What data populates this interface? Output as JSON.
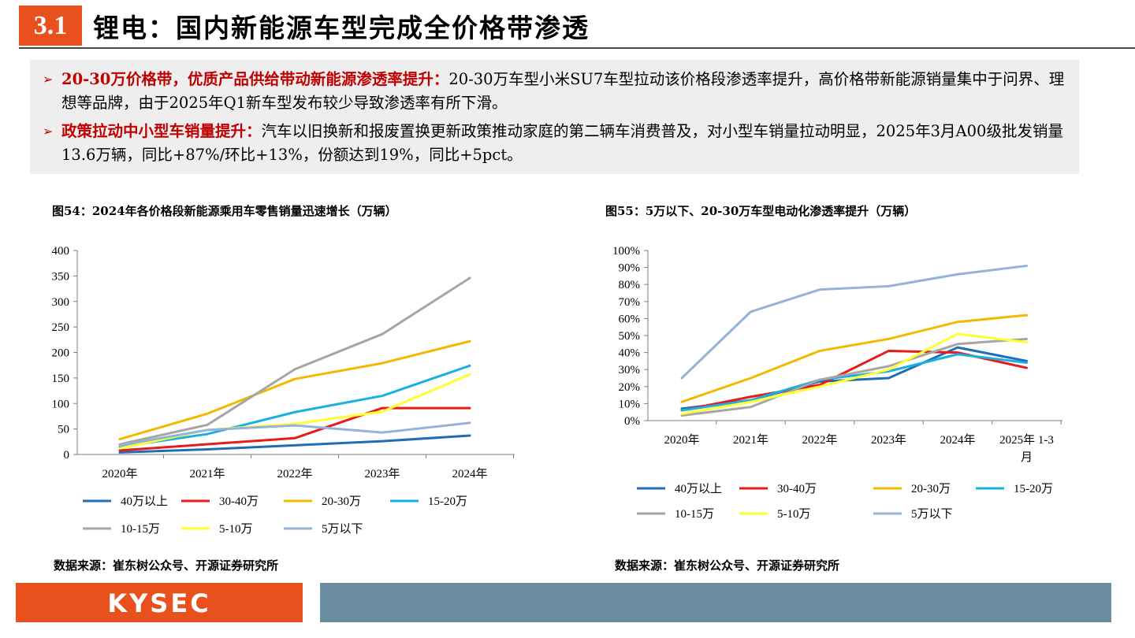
{
  "header": {
    "section": "3.1",
    "title": "锂电：国内新能源车型完成全价格带渗透"
  },
  "summary": {
    "bullets": [
      {
        "lead": "20-30万价格带，优质产品供给带动新能源渗透率提升：",
        "text": "20-30万车型小米SU7车型拉动该价格段渗透率提升，高价格带新能源销量集中于问界、理想等品牌，由于2025年Q1新车型发布较少导致渗透率有所下滑。"
      },
      {
        "lead": "政策拉动中小型车销量提升：",
        "text": "汽车以旧换新和报废置换更新政策推动家庭的第二辆车消费普及，对小型车销量拉动明显，2025年3月A00级批发销量13.6万辆，同比+87%/环比+13%，份额达到19%，同比+5pct。"
      }
    ]
  },
  "figures": [
    {
      "title": "图54：2024年各价格段新能源乘用车零售销量迅速增长（万辆）",
      "source": "数据来源：崔东树公众号、开源证券研究所"
    },
    {
      "title": "图55：5万以下、20-30万车型电动化渗透率提升（万辆）",
      "source": "数据来源：崔东树公众号、开源证券研究所"
    }
  ],
  "chart_data": [
    {
      "type": "line",
      "title": "图54：2024年各价格段新能源乘用车零售销量迅速增长（万辆）",
      "categories": [
        "2020年",
        "2021年",
        "2022年",
        "2023年",
        "2024年"
      ],
      "ylim": [
        0,
        400
      ],
      "yticks": [
        "0",
        "50",
        "100",
        "150",
        "200",
        "250",
        "300",
        "350",
        "400"
      ],
      "ytick_values": [
        0,
        50,
        100,
        150,
        200,
        250,
        300,
        350,
        400
      ],
      "legend_position": "bottom",
      "series": [
        {
          "name": "40万以上",
          "color": "#1f6db5",
          "values": [
            4,
            10,
            18,
            26,
            37
          ]
        },
        {
          "name": "30-40万",
          "color": "#e81a1a",
          "values": [
            8,
            20,
            32,
            91,
            91
          ]
        },
        {
          "name": "20-30万",
          "color": "#f5b800",
          "values": [
            30,
            80,
            148,
            179,
            222
          ]
        },
        {
          "name": "15-20万",
          "color": "#1ab0e0",
          "values": [
            15,
            40,
            83,
            115,
            174
          ]
        },
        {
          "name": "10-15万",
          "color": "#a6a6a6",
          "values": [
            20,
            58,
            167,
            236,
            346
          ]
        },
        {
          "name": "5-10万",
          "color": "#ffff33",
          "values": [
            12,
            48,
            60,
            84,
            157
          ]
        },
        {
          "name": "5万以下",
          "color": "#94b3d6",
          "values": [
            18,
            48,
            57,
            43,
            62
          ]
        }
      ]
    },
    {
      "type": "line",
      "title": "图55：5万以下、20-30万车型电动化渗透率提升（万辆）",
      "categories": [
        "2020年",
        "2021年",
        "2022年",
        "2023年",
        "2024年",
        "2025年 1-3月"
      ],
      "category_lines": [
        [
          "2020年"
        ],
        [
          "2021年"
        ],
        [
          "2022年"
        ],
        [
          "2023年"
        ],
        [
          "2024年"
        ],
        [
          "2025年 1-3",
          "月"
        ]
      ],
      "ylim": [
        0,
        100
      ],
      "yticks": [
        "0%",
        "10%",
        "20%",
        "30%",
        "40%",
        "50%",
        "60%",
        "70%",
        "80%",
        "90%",
        "100%"
      ],
      "ytick_values": [
        0,
        10,
        20,
        30,
        40,
        50,
        60,
        70,
        80,
        90,
        100
      ],
      "legend_position": "bottom",
      "series": [
        {
          "name": "40万以上",
          "color": "#1f6db5",
          "values": [
            7,
            12,
            23,
            25,
            43,
            35
          ]
        },
        {
          "name": "30-40万",
          "color": "#e81a1a",
          "values": [
            6,
            14,
            21,
            41,
            40,
            31
          ]
        },
        {
          "name": "20-30万",
          "color": "#f5b800",
          "values": [
            11,
            25,
            41,
            48,
            58,
            62
          ]
        },
        {
          "name": "15-20万",
          "color": "#1ab0e0",
          "values": [
            6,
            12,
            24,
            29,
            39,
            34
          ]
        },
        {
          "name": "10-15万",
          "color": "#a6a6a6",
          "values": [
            3,
            8,
            24,
            32,
            45,
            48
          ]
        },
        {
          "name": "5-10万",
          "color": "#ffff33",
          "values": [
            4,
            11,
            20,
            30,
            51,
            46
          ]
        },
        {
          "name": "5万以下",
          "color": "#94b3d6",
          "values": [
            25,
            64,
            77,
            79,
            86,
            91
          ]
        }
      ]
    }
  ],
  "footer": {
    "logo": "KYSEC",
    "brand_color": "#e8501e",
    "bar_color": "#6a8ea0"
  }
}
